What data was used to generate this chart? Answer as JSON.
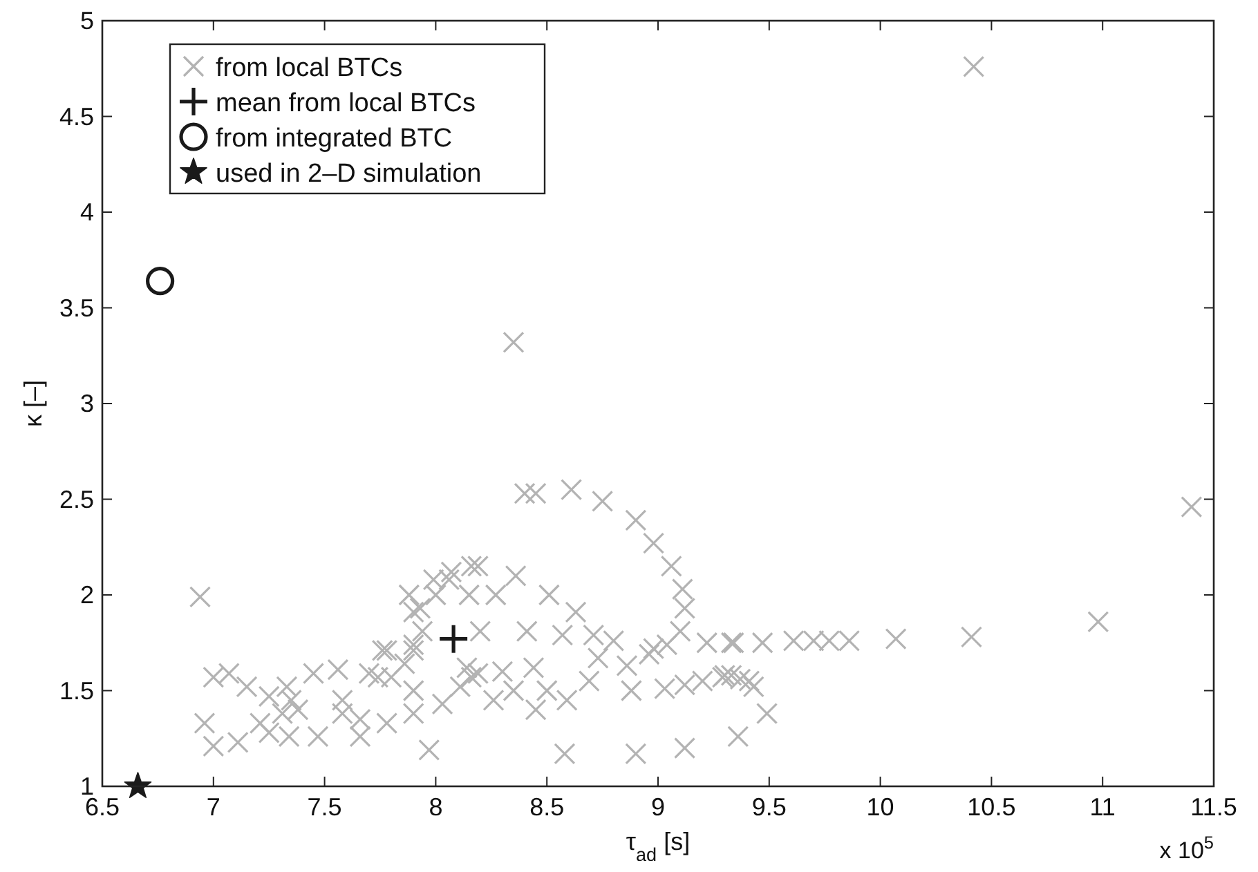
{
  "chart_data": {
    "type": "scatter",
    "xlabel": "τ$_{ad}$ [s]",
    "ylabel": "κ [–]",
    "annotations": [
      "x 10$^{5}$"
    ],
    "xlim": [
      6.5,
      11.5
    ],
    "xticks": [
      6.5,
      7,
      7.5,
      8,
      8.5,
      9,
      9.5,
      10,
      10.5,
      11,
      11.5
    ],
    "ylim": [
      1,
      5
    ],
    "yticks": [
      1,
      1.5,
      2,
      2.5,
      3,
      3.5,
      4,
      4.5,
      5
    ],
    "grid": false,
    "legend": "top left",
    "series": [
      {
        "name": "from local BTCs",
        "color": "#b3b3b3",
        "marker": "x",
        "x": [
          10.42,
          8.35,
          11.4,
          10.98,
          10.41,
          10.07,
          9.86,
          9.77,
          9.7,
          9.61,
          9.47,
          9.34,
          9.43,
          9.49,
          9.36,
          9.29,
          9.33,
          9.37,
          9.41,
          8.8,
          9.22,
          9.33,
          8.88,
          9.03,
          9.12,
          9.2,
          9.3,
          8.96,
          8.86,
          7.97,
          8.58,
          8.9,
          9.12,
          8.4,
          8.45,
          8.61,
          8.75,
          8.9,
          8.98,
          9.06,
          9.11,
          9.12,
          9.1,
          9.04,
          8.98,
          8.16,
          8.36,
          8.51,
          8.63,
          8.71,
          8.73,
          8.69,
          8.59,
          8.45,
          8.26,
          8.16,
          8.14,
          8.2,
          8.41,
          8.57,
          8.0,
          8.06,
          7.93,
          6.94,
          7.0,
          7.07,
          7.15,
          7.25,
          7.33,
          7.45,
          7.56,
          7.7,
          7.8,
          7.86,
          7.78,
          7.9,
          6.96,
          7.0,
          7.11,
          7.21,
          7.31,
          7.35,
          7.34,
          7.25,
          7.47,
          7.38,
          7.58,
          7.66,
          7.78,
          7.66,
          7.58,
          7.9,
          8.03,
          7.74,
          7.9,
          8.11,
          8.19,
          7.88,
          7.9,
          7.94,
          7.99,
          8.07,
          8.19,
          8.27,
          8.15,
          7.9,
          7.76,
          8.3,
          8.5,
          8.35,
          8.44
        ],
        "values": [
          4.76,
          3.32,
          2.46,
          1.86,
          1.78,
          1.77,
          1.76,
          1.76,
          1.76,
          1.76,
          1.75,
          1.75,
          1.52,
          1.38,
          1.26,
          1.57,
          1.58,
          1.56,
          1.55,
          1.76,
          1.75,
          1.75,
          1.5,
          1.51,
          1.53,
          1.55,
          1.58,
          1.69,
          1.63,
          1.19,
          1.17,
          1.17,
          1.2,
          2.53,
          2.53,
          2.55,
          2.49,
          2.39,
          2.27,
          2.15,
          2.03,
          1.93,
          1.81,
          1.74,
          1.72,
          2.15,
          2.1,
          2.0,
          1.91,
          1.79,
          1.67,
          1.55,
          1.45,
          1.4,
          1.45,
          1.57,
          1.62,
          1.81,
          1.81,
          1.79,
          2.0,
          2.08,
          1.93,
          1.99,
          1.57,
          1.59,
          1.52,
          1.47,
          1.52,
          1.59,
          1.61,
          1.59,
          1.57,
          1.64,
          1.71,
          1.71,
          1.33,
          1.21,
          1.23,
          1.33,
          1.38,
          1.45,
          1.26,
          1.28,
          1.26,
          1.4,
          1.38,
          1.35,
          1.33,
          1.26,
          1.45,
          1.38,
          1.43,
          1.57,
          1.5,
          1.52,
          1.59,
          2.0,
          1.91,
          1.81,
          2.08,
          2.12,
          2.15,
          2.0,
          2.0,
          1.74,
          1.71,
          1.6,
          1.5,
          1.5,
          1.62
        ]
      },
      {
        "name": "mean from local BTCs",
        "color": "#1a1a1a",
        "marker": "cross",
        "x": [
          8.08
        ],
        "values": [
          1.77
        ]
      },
      {
        "name": "from integrated BTC",
        "color": "#1a1a1a",
        "marker": "circle",
        "x": [
          6.76
        ],
        "values": [
          3.64
        ]
      },
      {
        "name": "used in 2–D simulation",
        "color": "#1a1a1a",
        "marker": "star",
        "x": [
          6.66
        ],
        "values": [
          1.0
        ]
      }
    ]
  }
}
